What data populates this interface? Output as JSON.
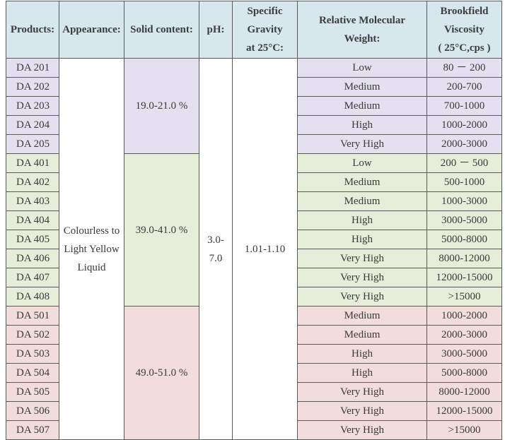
{
  "headers": {
    "products": "Products:",
    "appearance": "Appearance:",
    "solid": "Solid content:",
    "ph": "pH:",
    "gravity_l1": "Specific",
    "gravity_l2": "Gravity",
    "gravity_l3": "at 25°C:",
    "weight_l1": "Relative Molecular",
    "weight_l2": "Weight:",
    "visc_l1": "Brookfield",
    "visc_l2": "Viscosity",
    "visc_l3": "( 25°C,cps )"
  },
  "shared": {
    "appearance_l1": "Colourless to",
    "appearance_l2": "Light Yellow",
    "appearance_l3": "Liquid",
    "ph_l1": "3.0-",
    "ph_l2": "7.0",
    "gravity": "1.01-1.10"
  },
  "groups": [
    {
      "color": "#e5e0ef",
      "solid": "19.0-21.0 %",
      "rows": [
        {
          "product": "DA 201",
          "weight": "Low",
          "viscosity": "80 － 200"
        },
        {
          "product": "DA 202",
          "weight": "Medium",
          "viscosity": "200-700"
        },
        {
          "product": "DA 203",
          "weight": "Medium",
          "viscosity": "700-1000"
        },
        {
          "product": "DA 204",
          "weight": "High",
          "viscosity": "1000-2000"
        },
        {
          "product": "DA 205",
          "weight": "Very High",
          "viscosity": "2000-3000"
        }
      ]
    },
    {
      "color": "#e6eed9",
      "solid": "39.0-41.0 %",
      "rows": [
        {
          "product": "DA 401",
          "weight": "Low",
          "viscosity": "200 － 500"
        },
        {
          "product": "DA 402",
          "weight": "Medium",
          "viscosity": "500-1000"
        },
        {
          "product": "DA 403",
          "weight": "Medium",
          "viscosity": "1000-3000"
        },
        {
          "product": "DA 404",
          "weight": "High",
          "viscosity": "3000-5000"
        },
        {
          "product": "DA 405",
          "weight": "High",
          "viscosity": "5000-8000"
        },
        {
          "product": "DA 406",
          "weight": "Very High",
          "viscosity": "8000-12000"
        },
        {
          "product": "DA 407",
          "weight": "Very High",
          "viscosity": "12000-15000"
        },
        {
          "product": "DA 408",
          "weight": "Very High",
          "viscosity": ">15000"
        }
      ]
    },
    {
      "color": "#f2dcdc",
      "solid": "49.0-51.0 %",
      "rows": [
        {
          "product": "DA 501",
          "weight": "Medium",
          "viscosity": "1000-2000"
        },
        {
          "product": "DA 502",
          "weight": "Medium",
          "viscosity": "2000-3000"
        },
        {
          "product": "DA 503",
          "weight": "High",
          "viscosity": "3000-5000"
        },
        {
          "product": "DA 504",
          "weight": "High",
          "viscosity": "5000-8000"
        },
        {
          "product": "DA 505",
          "weight": "Very High",
          "viscosity": "8000-12000"
        },
        {
          "product": "DA 506",
          "weight": "Very High",
          "viscosity": "12000-15000"
        },
        {
          "product": "DA 507",
          "weight": "Very High",
          "viscosity": ">15000"
        }
      ]
    }
  ]
}
